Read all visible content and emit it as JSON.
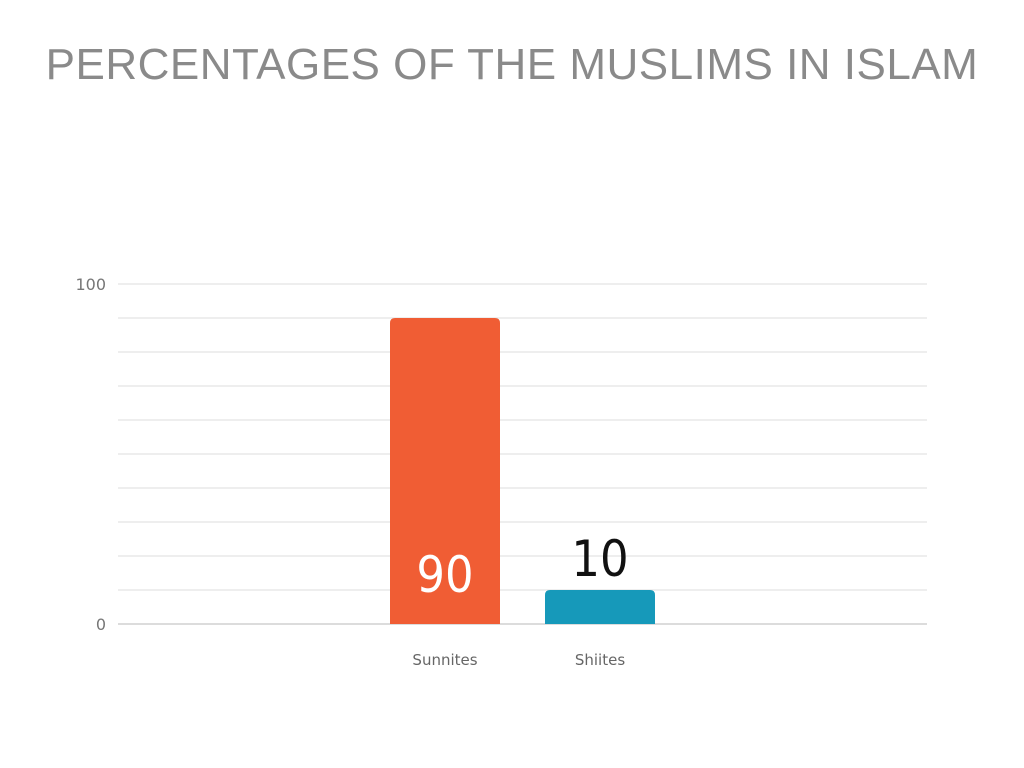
{
  "chart_data": {
    "type": "bar",
    "title": "PERCENTAGES OF THE MUSLIMS IN ISLAM",
    "categories": [
      "Sunnites",
      "Shiites"
    ],
    "values": [
      90,
      10
    ],
    "data_labels": [
      "90",
      "10"
    ],
    "colors": [
      "#F05D34",
      "#1699BA"
    ],
    "ylim": [
      0,
      100
    ],
    "y_ticks": [
      "0",
      "100"
    ],
    "grid": true,
    "xlabel": "",
    "ylabel": ""
  }
}
